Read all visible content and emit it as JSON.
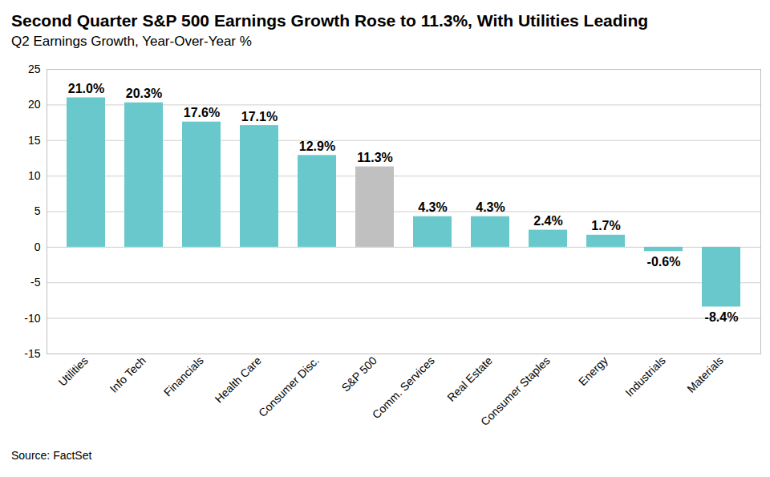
{
  "chart_data": {
    "type": "bar",
    "title": "Second Quarter S&P 500 Earnings Growth Rose to 11.3%, With Utilities Leading",
    "subtitle": "Q2 Earnings Growth, Year-Over-Year %",
    "caption": "Source: FactSet",
    "categories": [
      "Utilities",
      "Info Tech",
      "Financials",
      "Health Care",
      "Consumer Disc.",
      "S&P 500",
      "Comm. Services",
      "Real Estate",
      "Consumer Staples",
      "Energy",
      "Industrials",
      "Materials"
    ],
    "values": [
      21.0,
      20.3,
      17.6,
      17.1,
      12.9,
      11.3,
      4.3,
      4.3,
      2.4,
      1.7,
      -0.6,
      -8.4
    ],
    "value_labels": [
      "21.0%",
      "20.3%",
      "17.6%",
      "17.1%",
      "12.9%",
      "11.3%",
      "4.3%",
      "4.3%",
      "2.4%",
      "1.7%",
      "-0.6%",
      "-8.4%"
    ],
    "colors": [
      "#68c8cc",
      "#68c8cc",
      "#68c8cc",
      "#68c8cc",
      "#68c8cc",
      "#c0c0c0",
      "#68c8cc",
      "#68c8cc",
      "#68c8cc",
      "#68c8cc",
      "#68c8cc",
      "#68c8cc"
    ],
    "ylim": [
      -15,
      25
    ],
    "yticks": [
      -15,
      -10,
      -5,
      0,
      5,
      10,
      15,
      20,
      25
    ],
    "grid": true,
    "data_labels": true
  }
}
